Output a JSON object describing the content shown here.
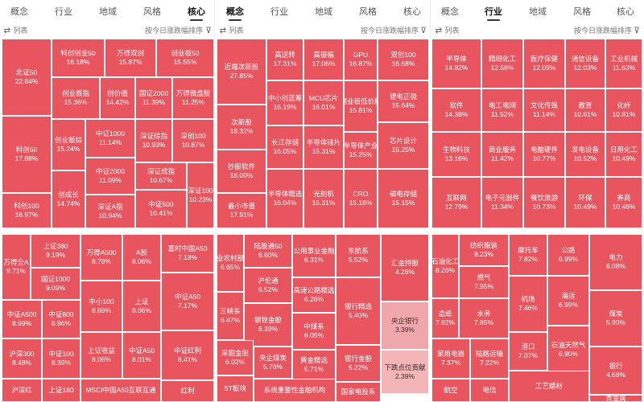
{
  "tabs": [
    {
      "group": 0,
      "items": [
        "概念",
        "行业",
        "地域",
        "风格",
        "核心"
      ],
      "active": 4
    },
    {
      "group": 1,
      "items": [
        "概念",
        "行业",
        "地域",
        "风格",
        "核心"
      ],
      "active": 0
    },
    {
      "group": 2,
      "items": [
        "概念",
        "行业",
        "地域",
        "风格",
        "核心"
      ],
      "active": 1
    }
  ],
  "options": {
    "list_label": "列表",
    "sort_label": "按今日涨跌幅排序"
  },
  "colors": {
    "up": "#e8555f",
    "up_light": "#f0a7ab"
  },
  "panels": [
    {
      "id": "core",
      "cells": [
        [
          "北证50",
          "22.84%"
        ],
        [
          "科创创业50",
          "16.18%"
        ],
        [
          "万得双创",
          "15.87%"
        ],
        [
          "创业板50",
          "15.55%"
        ],
        [
          "创业板指",
          "15.36%"
        ],
        [
          "创价值",
          "14.42%"
        ],
        [
          "国证2000",
          "11.39%"
        ],
        [
          "万得微盘股",
          "11.25%"
        ],
        [
          "科创50",
          "17.88%"
        ],
        [
          "中证1000",
          "11.14%"
        ],
        [
          "深证综指",
          "10.93%"
        ],
        [
          "深创100",
          "10.87%"
        ],
        [
          "创业板综",
          "15.24%"
        ],
        [
          "中证2000",
          "11.09%"
        ],
        [
          "深证成指",
          "10.67%"
        ],
        [
          "科创100",
          "16.97%"
        ],
        [
          "创成长",
          "14.74%"
        ],
        [
          "深证A指",
          "10.94%"
        ],
        [
          "中证500",
          "10.41%"
        ],
        [
          "深证100",
          "10.23%"
        ]
      ]
    },
    {
      "id": "concept",
      "cells": [
        [
          "近端次新股",
          "27.85%"
        ],
        [
          "高送转",
          "17.31%"
        ],
        [
          "高振幅",
          "17.06%"
        ],
        [
          "GPU",
          "16.87%"
        ],
        [
          "双创100",
          "16.68%"
        ],
        [
          "次新股",
          "18.32%"
        ],
        [
          "中小创蓝筹",
          "16.19%"
        ],
        [
          "MCU芯片",
          "16.01%"
        ],
        [
          "创业板低价股",
          "15.81%"
        ],
        [
          "锂电正极",
          "15.64%"
        ],
        [
          "长江存储",
          "16.05%"
        ],
        [
          "半导体硅片",
          "15.31%"
        ],
        [
          "半导体产业",
          "15.25%"
        ],
        [
          "芯片设计",
          "15.25%"
        ],
        [
          "抄股软件",
          "18.00%"
        ],
        [
          "最小市值",
          "17.91%"
        ],
        [
          "半导体精选",
          "16.04%"
        ],
        [
          "光刻机",
          "15.31%"
        ],
        [
          "CRO",
          "15.18%"
        ],
        [
          "磁电存储",
          "15.15%"
        ]
      ]
    },
    {
      "id": "industry",
      "cells": [
        [
          "半导体",
          "14.82%"
        ],
        [
          "精细化工",
          "12.58%"
        ],
        [
          "医疗保健",
          "12.09%"
        ],
        [
          "通信设备",
          "12.03%"
        ],
        [
          "工业机械",
          "11.63%"
        ],
        [
          "软件",
          "14.38%"
        ],
        [
          "电工电网",
          "11.52%"
        ],
        [
          "文化传媒",
          "11.14%"
        ],
        [
          "教育",
          "10.81%"
        ],
        [
          "化纤",
          "10.81%"
        ],
        [
          "生物科技",
          "13.16%"
        ],
        [
          "商业服务",
          "11.42%"
        ],
        [
          "电脑硬件",
          "10.77%"
        ],
        [
          "发电设备",
          "10.52%"
        ],
        [
          "日用化工",
          "10.49%"
        ],
        [
          "互联网",
          "12.79%"
        ],
        [
          "电子元器件",
          "11.34%"
        ],
        [
          "餐饮旅游",
          "10.73%"
        ],
        [
          "环保",
          "10.49%"
        ],
        [
          "券商",
          "10.46%"
        ]
      ]
    },
    {
      "id": "core2",
      "cells": [
        [
          "万得全A",
          "9.71%"
        ],
        [
          "上证380",
          "9.19%"
        ],
        [
          "万得A500",
          "8.78%"
        ],
        [
          "A股",
          "8.06%"
        ],
        [
          "富时中国A50",
          "7.18%"
        ],
        [
          "国证1000",
          "9.09%"
        ],
        [
          "中证A500",
          "8.99%"
        ],
        [
          "中证800",
          "8.96%"
        ],
        [
          "中小100",
          "8.69%"
        ],
        [
          "上证",
          "8.06%"
        ],
        [
          "中证A50",
          "7.17%"
        ],
        [
          "沪深300",
          "8.48%"
        ],
        [
          "中证100",
          "8.39%"
        ],
        [
          "上证收益",
          "8.06%"
        ],
        [
          "中证A50",
          "8.01%"
        ],
        [
          "中证红利",
          "6.41%"
        ],
        [
          "沪深红",
          ""
        ],
        [
          "上证180",
          ""
        ],
        [
          "MSCI中国A50互联互通",
          ""
        ],
        [
          "红利",
          ""
        ]
      ]
    },
    {
      "id": "concept2",
      "cells": [
        [
          "农业农村部系",
          "6.65%"
        ],
        [
          "陆股通50",
          "6.60%"
        ],
        [
          "公用事业金融",
          "6.31%"
        ],
        [
          "东航系",
          "5.52%"
        ],
        [
          "汇金持股",
          "4.26%"
        ],
        [
          "沪伦通",
          "6.52%"
        ],
        [
          "高速公路精选",
          "6.28%"
        ],
        [
          "三峡系",
          "6.47%"
        ],
        [
          "钢铁金股",
          "6.39%"
        ],
        [
          "中煤系",
          "6.05%"
        ],
        [
          "银行精选",
          "5.40%"
        ],
        [
          "央企银行",
          "3.39%"
        ],
        [
          "采掘金股",
          "6.02%"
        ],
        [
          "央企煤炭",
          "5.76%"
        ],
        [
          "黄金精选",
          "5.71%"
        ],
        [
          "银行金股",
          "5.22%"
        ],
        [
          "下跌点位贡献",
          "2.39%"
        ],
        [
          "ST板块",
          ""
        ],
        [
          "系统重要性金融机构",
          ""
        ],
        [
          "国家电投系",
          ""
        ]
      ]
    },
    {
      "id": "industry2",
      "cells": [
        [
          "石油化工",
          "8.26%"
        ],
        [
          "纺织服装",
          "8.23%"
        ],
        [
          "摩托车",
          "7.82%"
        ],
        [
          "公路",
          "6.99%"
        ],
        [
          "电力",
          "6.08%"
        ],
        [
          "燃气",
          "7.95%"
        ],
        [
          "造纸",
          "7.92%"
        ],
        [
          "水务",
          "7.85%"
        ],
        [
          "机场",
          "7.46%"
        ],
        [
          "海运",
          "6.99%"
        ],
        [
          "煤炭",
          "5.90%"
        ],
        [
          "家用电器",
          "7.37%"
        ],
        [
          "陆路运输",
          "7.22%"
        ],
        [
          "港口",
          "7.07%"
        ],
        [
          "石油天然气",
          "6.90%"
        ],
        [
          "银行",
          "4.68%"
        ],
        [
          "航空",
          ""
        ],
        [
          "电信",
          ""
        ],
        [
          "工艺蜡材",
          ""
        ],
        [
          "贵金属",
          ""
        ]
      ]
    }
  ]
}
